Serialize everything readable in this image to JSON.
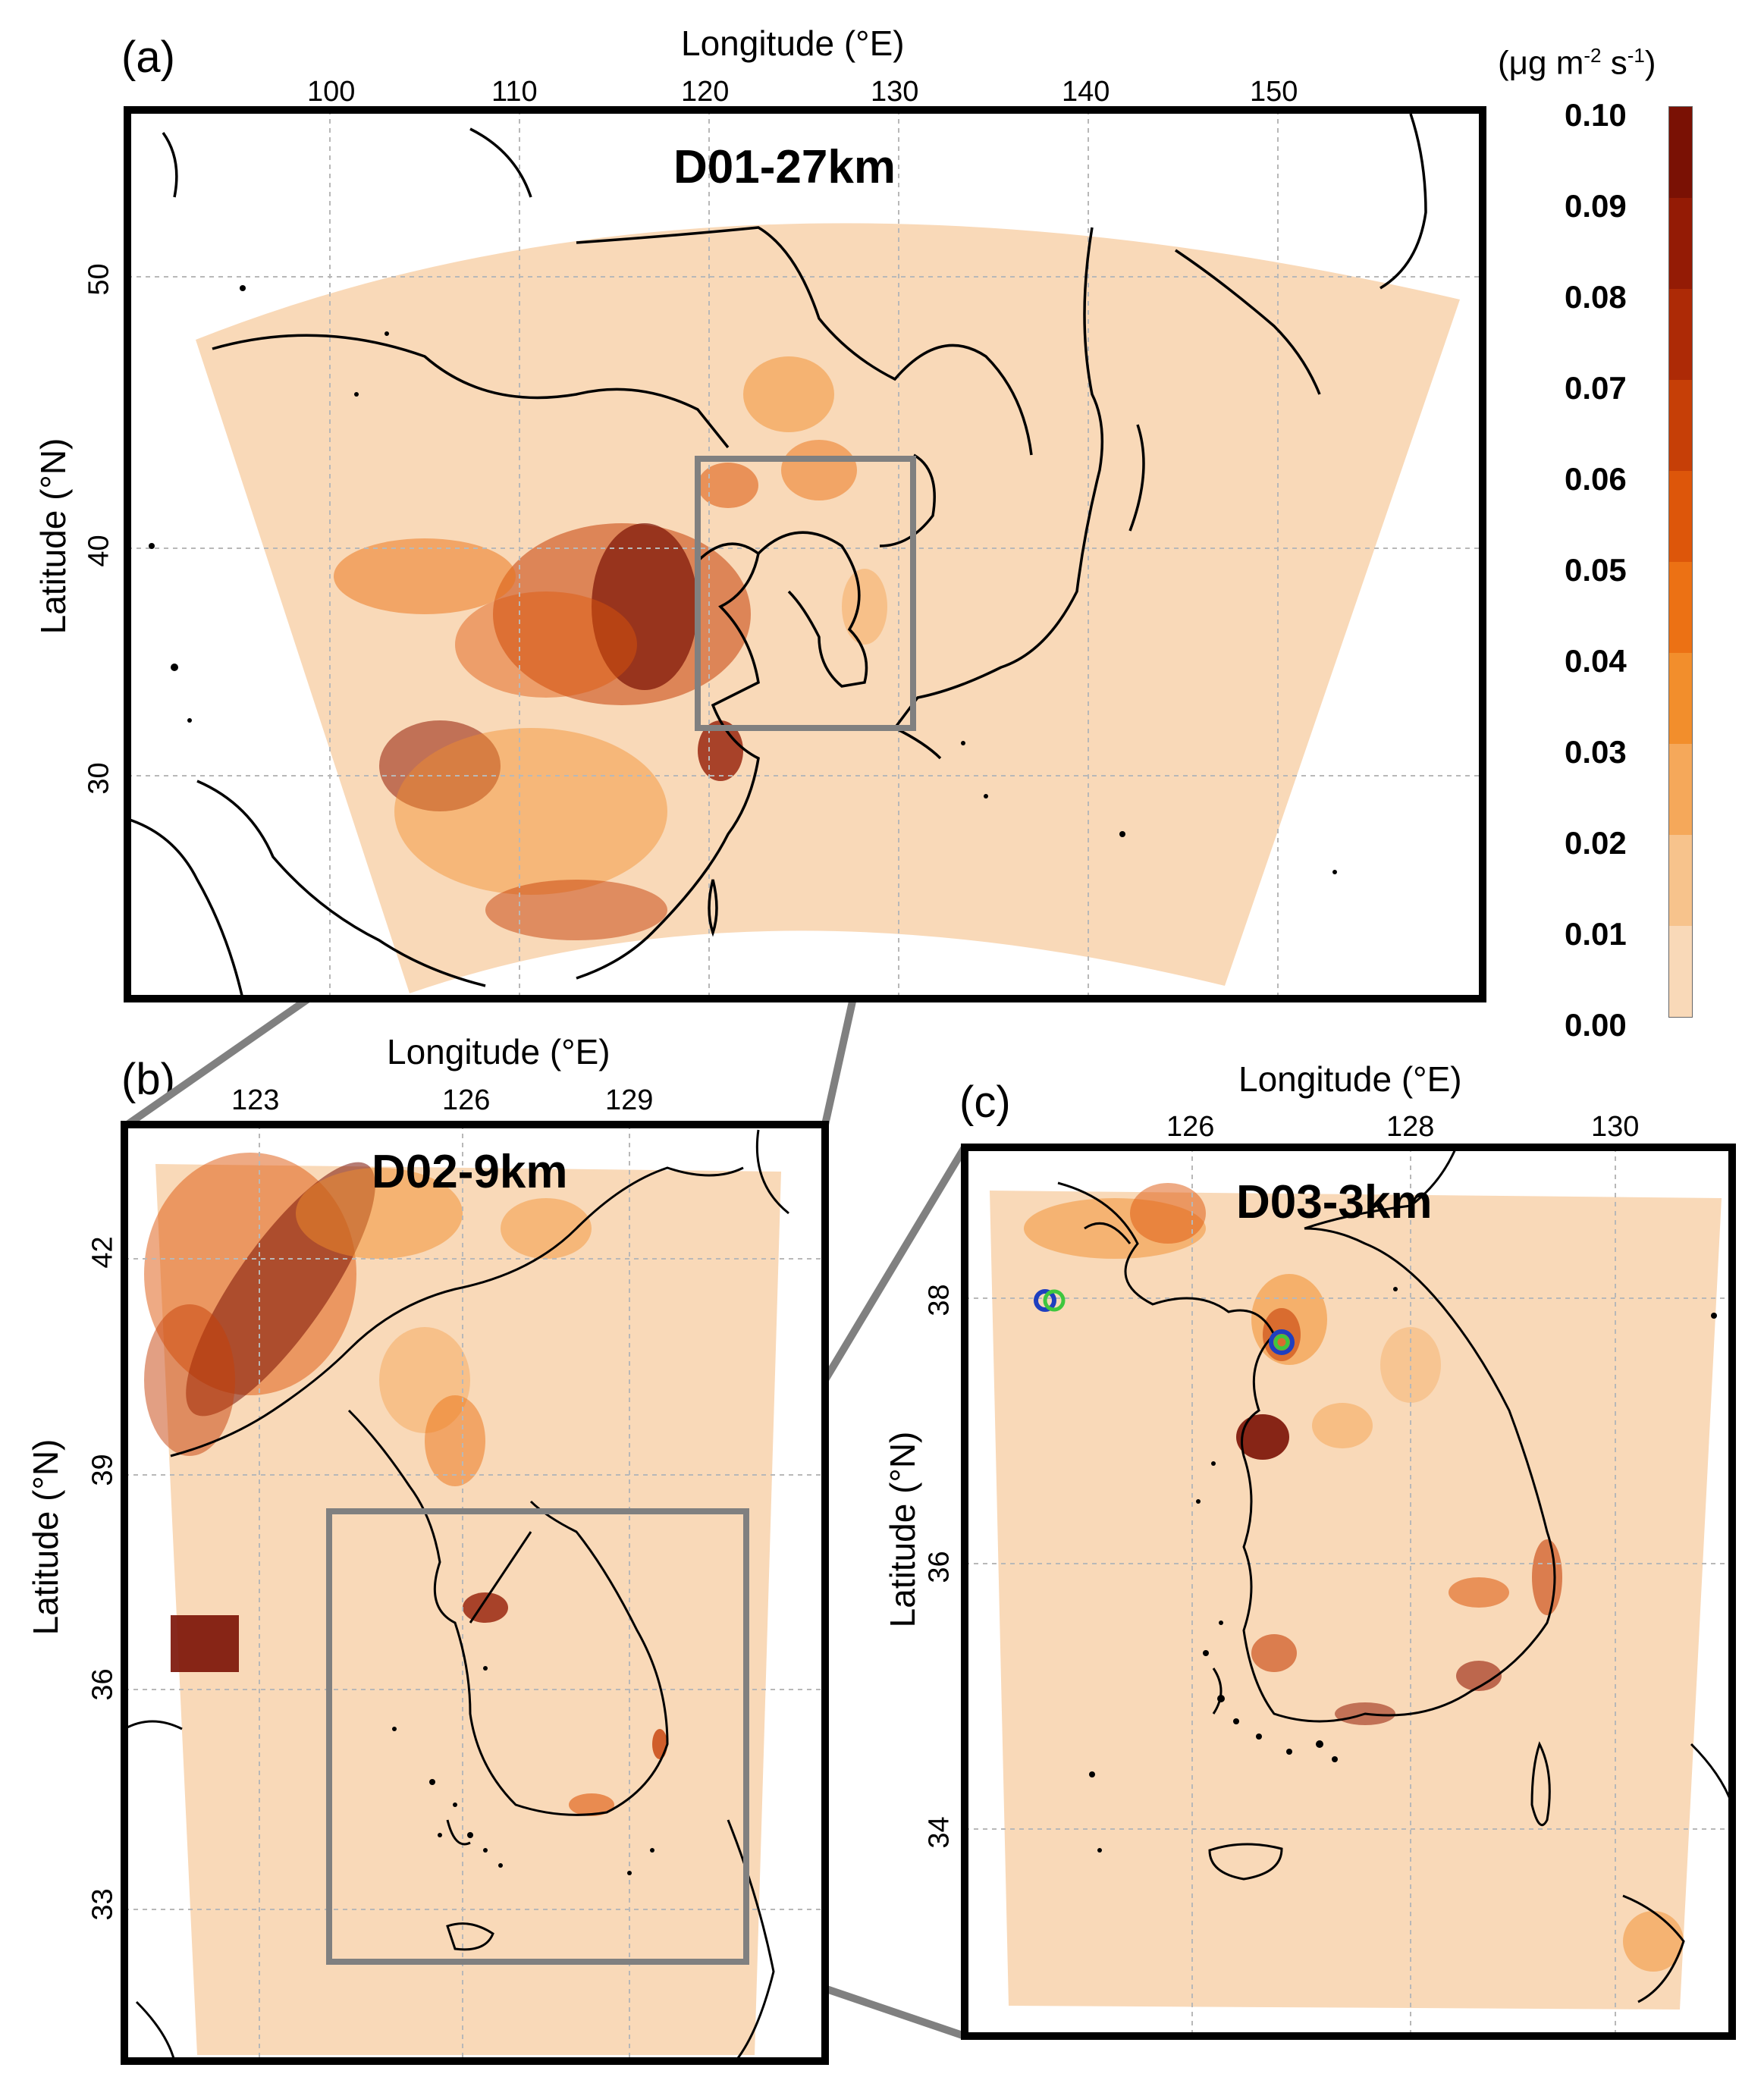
{
  "figure": {
    "colorbar": {
      "unit": "(μg m-2 s-1)",
      "unit_parts": {
        "pre": "(μg m",
        "sup1": "-2",
        "mid": " s",
        "sup2": "-1",
        "post": ")"
      },
      "ticks": [
        "0.10",
        "0.09",
        "0.08",
        "0.07",
        "0.06",
        "0.05",
        "0.04",
        "0.03",
        "0.02",
        "0.01",
        "0.00"
      ],
      "colors": [
        "#f9d9b8",
        "#f7c38c",
        "#f5a85a",
        "#f28e2c",
        "#ec7114",
        "#dd560a",
        "#c63f07",
        "#ad2a06",
        "#941b05",
        "#7a1104"
      ]
    },
    "panel_a": {
      "label": "(a)",
      "domain_title": "D01-27km",
      "xlabel": "Longitude (°E)",
      "ylabel": "Latitude (°N)",
      "lon_ticks": [
        "100",
        "110",
        "120",
        "130",
        "140",
        "150"
      ],
      "lat_ticks": [
        "50",
        "40",
        "30"
      ]
    },
    "panel_b": {
      "label": "(b)",
      "domain_title": "D02-9km",
      "xlabel": "Longitude (°E)",
      "ylabel": "Latitude (°N)",
      "lon_ticks": [
        "123",
        "126",
        "129"
      ],
      "lat_ticks": [
        "42",
        "39",
        "36",
        "33"
      ]
    },
    "panel_c": {
      "label": "(c)",
      "domain_title": "D03-3km",
      "xlabel": "Longitude (°E)",
      "ylabel": "Latitude (°N)",
      "lon_ticks": [
        "126",
        "128",
        "130"
      ],
      "lat_ticks": [
        "38",
        "36",
        "34"
      ]
    },
    "colors": {
      "frame": "#000000",
      "zoom_box": "#808080",
      "background_emission": "#f9d9b8",
      "gridline": "#b8b8b8",
      "marker_outer": "#1f3fbf",
      "marker_inner": "#3ec63e"
    }
  }
}
